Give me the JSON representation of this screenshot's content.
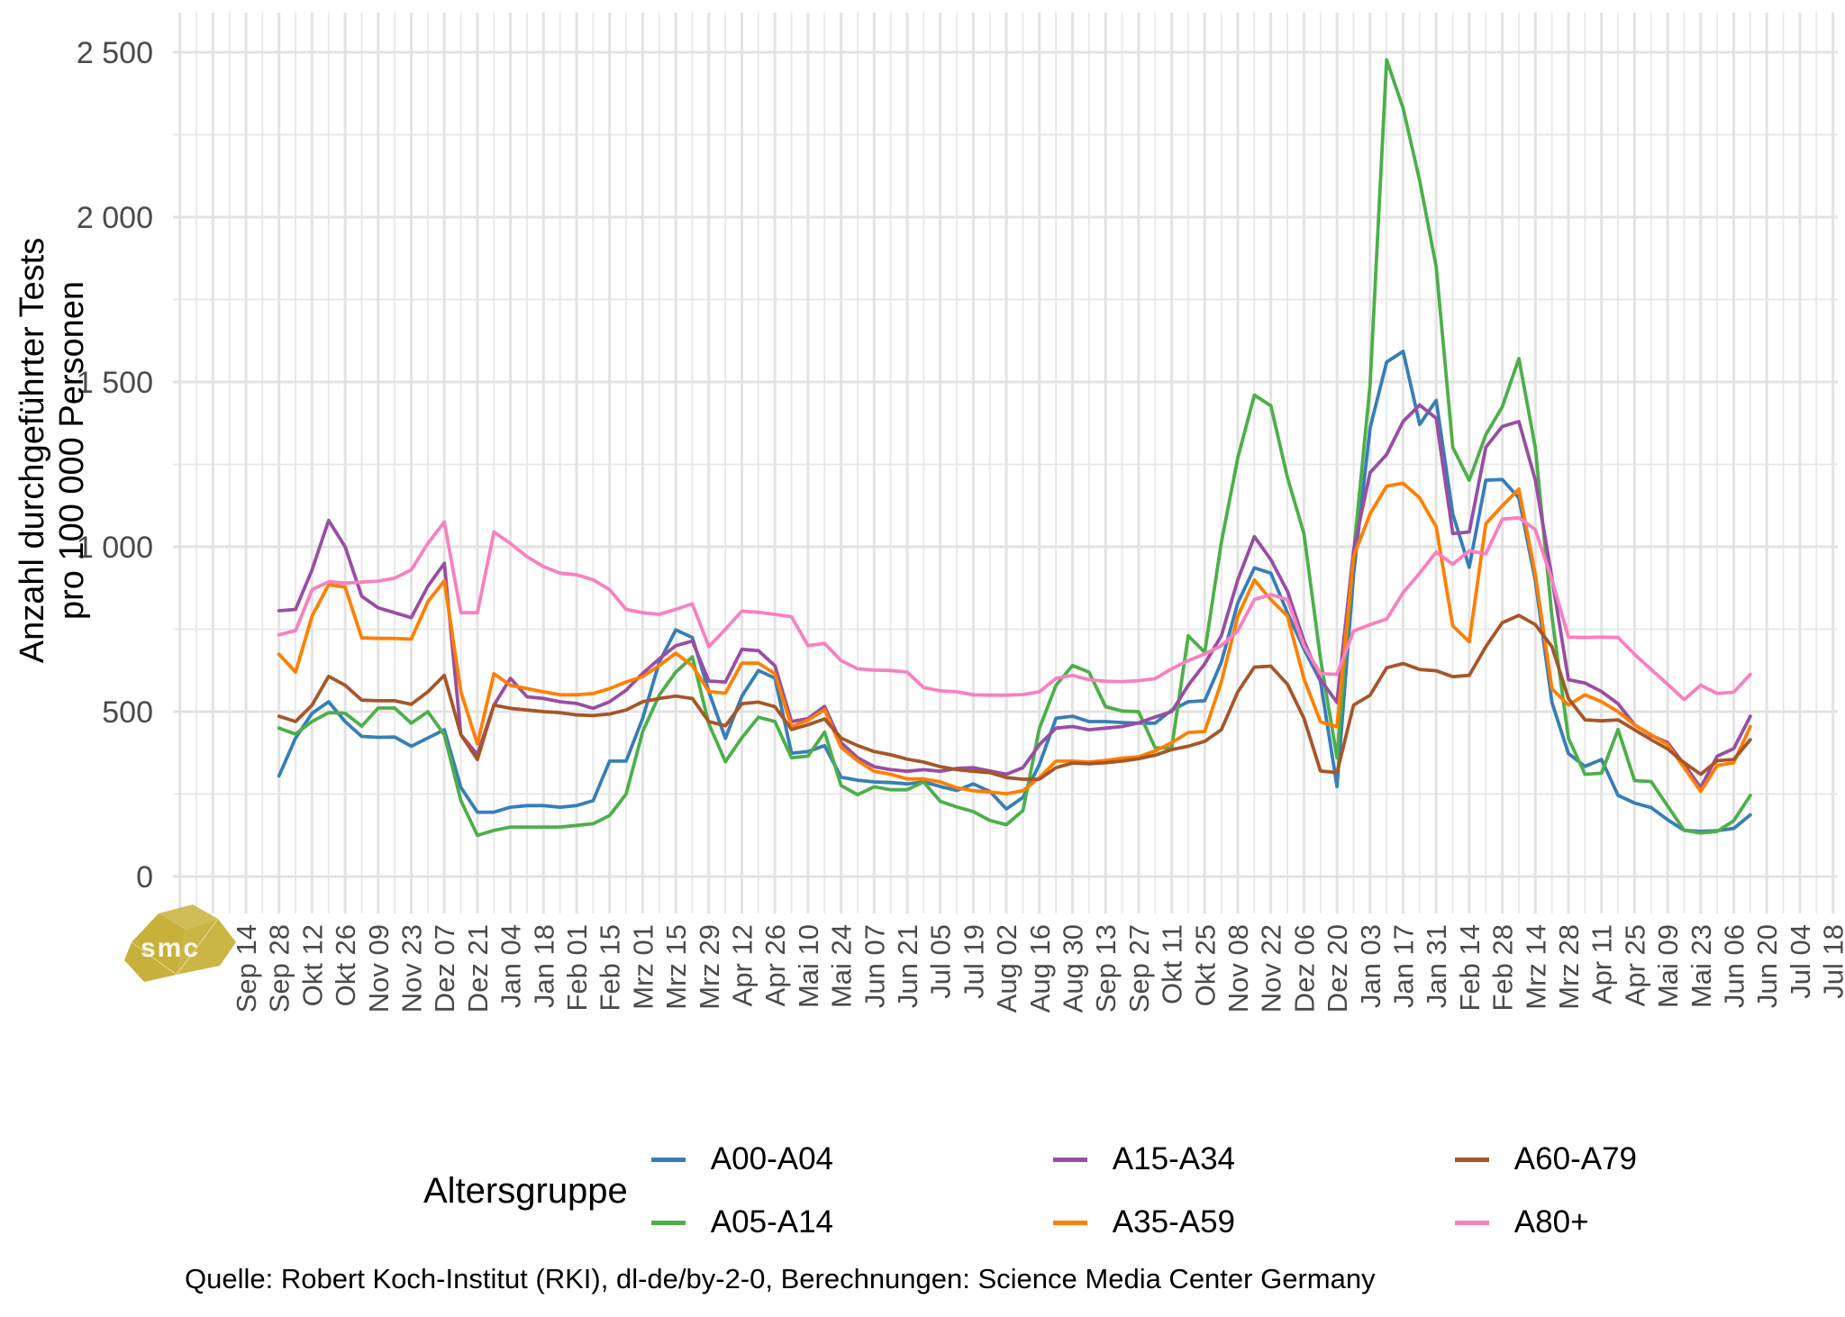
{
  "watermark": {
    "text": "smc",
    "color": "#c8b13b"
  },
  "y_axis": {
    "title_line1": "Anzahl durchgeführter Tests",
    "title_line2": "pro 100 000 Personen",
    "tick_labels": [
      "0",
      "500",
      "1 000",
      "1 500",
      "2 000",
      "2 500"
    ],
    "tick_values": [
      0,
      500,
      1000,
      1500,
      2000,
      2500
    ],
    "minor_values": [
      250,
      750,
      1250,
      1750,
      2250
    ]
  },
  "x_axis": {
    "tick_labels": [
      "Sep 14",
      "Sep 28",
      "Okt 12",
      "Okt 26",
      "Nov 09",
      "Nov 23",
      "Dez 07",
      "Dez 21",
      "Jan 04",
      "Jan 18",
      "Feb 01",
      "Feb 15",
      "Mrz 01",
      "Mrz 15",
      "Mrz 29",
      "Apr 12",
      "Apr 26",
      "Mai 10",
      "Mai 24",
      "Jun 07",
      "Jun 21",
      "Jul 05",
      "Jul 19",
      "Aug 02",
      "Aug 16",
      "Aug 30",
      "Sep 13",
      "Sep 27",
      "Okt 11",
      "Okt 25",
      "Nov 08",
      "Nov 22",
      "Dez 06",
      "Dez 20",
      "Jan 03",
      "Jan 17",
      "Jan 31",
      "Feb 14",
      "Feb 28",
      "Mrz 14",
      "Mrz 28",
      "Apr 11",
      "Apr 25",
      "Mai 09",
      "Mai 23",
      "Jun 06",
      "Jun 20",
      "Jul 04",
      "Jul 18"
    ],
    "ticks_every_weeks": 2
  },
  "legend": {
    "title": "Altersgruppe",
    "items": [
      {
        "label": "A00-A04",
        "color": "#377eb8"
      },
      {
        "label": "A15-A34",
        "color": "#984ea3"
      },
      {
        "label": "A60-A79",
        "color": "#a65628"
      },
      {
        "label": "A05-A14",
        "color": "#4daf4a"
      },
      {
        "label": "A35-A59",
        "color": "#ff7f00"
      },
      {
        "label": "A80+",
        "color": "#f781bf"
      }
    ]
  },
  "source_line": "Quelle: Robert Koch-Institut (RKI), dl-de/by-2-0, Berechnungen: Science Media Center Germany",
  "chart_data": {
    "type": "line",
    "title": "",
    "xlabel": "",
    "ylabel": "Anzahl durchgeführter Tests pro 100 000 Personen",
    "ylim": [
      0,
      2620
    ],
    "grid": true,
    "legend_position": "bottom",
    "x_unit": "weeks since first tick (Sep 14 2020); data points are weekly",
    "first_data_week": 2,
    "series": [
      {
        "name": "A00-A04",
        "color": "#377eb8",
        "values": [
          305,
          420,
          495,
          530,
          470,
          425,
          422,
          423,
          395,
          420,
          445,
          270,
          195,
          195,
          210,
          215,
          215,
          210,
          215,
          230,
          350,
          350,
          480,
          650,
          748,
          725,
          561,
          419,
          547,
          625,
          602,
          374,
          379,
          397,
          301,
          292,
          287,
          285,
          281,
          287,
          273,
          261,
          281,
          258,
          205,
          240,
          340,
          480,
          486,
          470,
          470,
          467,
          465,
          465,
          505,
          530,
          533,
          650,
          830,
          936,
          920,
          800,
          690,
          592,
          273,
          915,
          1360,
          1560,
          1593,
          1371,
          1444,
          1100,
          938,
          1202,
          1204,
          1148,
          897,
          528,
          373,
          334,
          355,
          246,
          223,
          209,
          172,
          140,
          137,
          139,
          146,
          187
        ]
      },
      {
        "name": "A05-A14",
        "color": "#4daf4a",
        "values": [
          450,
          432,
          470,
          497,
          495,
          456,
          511,
          511,
          465,
          500,
          430,
          230,
          125,
          140,
          150,
          150,
          150,
          150,
          155,
          160,
          185,
          250,
          440,
          550,
          620,
          666,
          463,
          348,
          421,
          483,
          470,
          360,
          365,
          438,
          276,
          248,
          272,
          263,
          263,
          287,
          228,
          211,
          197,
          170,
          157,
          200,
          450,
          580,
          640,
          620,
          515,
          502,
          500,
          390,
          390,
          730,
          680,
          1013,
          1270,
          1460,
          1428,
          1210,
          1040,
          660,
          360,
          980,
          1490,
          2477,
          2330,
          2110,
          1850,
          1302,
          1202,
          1340,
          1425,
          1571,
          1300,
          788,
          420,
          310,
          313,
          446,
          291,
          288,
          214,
          140,
          132,
          137,
          169,
          246
        ]
      },
      {
        "name": "A15-A34",
        "color": "#984ea3",
        "values": [
          806,
          810,
          930,
          1080,
          1000,
          850,
          815,
          800,
          785,
          880,
          950,
          430,
          370,
          520,
          601,
          545,
          540,
          530,
          525,
          510,
          530,
          565,
          616,
          660,
          700,
          714,
          593,
          590,
          689,
          685,
          639,
          470,
          479,
          516,
          406,
          360,
          333,
          324,
          319,
          324,
          319,
          328,
          330,
          320,
          310,
          330,
          400,
          450,
          455,
          445,
          450,
          455,
          466,
          484,
          500,
          580,
          645,
          730,
          900,
          1031,
          961,
          865,
          715,
          597,
          528,
          990,
          1225,
          1280,
          1380,
          1430,
          1390,
          1040,
          1045,
          1302,
          1365,
          1380,
          1202,
          906,
          597,
          587,
          561,
          524,
          460,
          428,
          406,
          340,
          270,
          365,
          388,
          486
        ]
      },
      {
        "name": "A35-A59",
        "color": "#ff7f00",
        "values": [
          674,
          620,
          790,
          885,
          878,
          724,
          722,
          722,
          720,
          833,
          897,
          560,
          402,
          615,
          580,
          570,
          560,
          551,
          551,
          555,
          570,
          590,
          606,
          640,
          677,
          640,
          561,
          556,
          647,
          647,
          615,
          455,
          474,
          506,
          392,
          351,
          319,
          310,
          296,
          296,
          287,
          269,
          260,
          256,
          251,
          260,
          300,
          350,
          350,
          347,
          352,
          359,
          363,
          381,
          406,
          437,
          440,
          590,
          790,
          899,
          840,
          790,
          600,
          469,
          455,
          970,
          1100,
          1184,
          1193,
          1148,
          1061,
          760,
          712,
          1070,
          1125,
          1175,
          915,
          569,
          520,
          551,
          530,
          500,
          460,
          430,
          400,
          330,
          258,
          337,
          345,
          455
        ]
      },
      {
        "name": "A60-A79",
        "color": "#a65628",
        "values": [
          486,
          470,
          520,
          607,
          580,
          535,
          533,
          533,
          522,
          560,
          610,
          430,
          355,
          520,
          510,
          505,
          500,
          497,
          490,
          488,
          493,
          505,
          530,
          540,
          547,
          540,
          470,
          457,
          524,
          529,
          515,
          446,
          460,
          478,
          420,
          397,
          379,
          369,
          356,
          347,
          333,
          324,
          319,
          315,
          300,
          295,
          295,
          330,
          344,
          342,
          345,
          350,
          357,
          368,
          385,
          395,
          410,
          445,
          560,
          635,
          638,
          583,
          480,
          320,
          315,
          520,
          550,
          633,
          646,
          628,
          624,
          606,
          610,
          697,
          770,
          792,
          764,
          697,
          540,
          475,
          472,
          475,
          445,
          415,
          387,
          345,
          310,
          351,
          355,
          415
        ]
      },
      {
        "name": "A80+",
        "color": "#f781bf",
        "values": [
          733,
          746,
          870,
          894,
          890,
          893,
          896,
          905,
          930,
          1010,
          1075,
          800,
          800,
          1045,
          1010,
          970,
          940,
          920,
          915,
          900,
          870,
          810,
          800,
          795,
          810,
          827,
          697,
          750,
          805,
          801,
          795,
          788,
          700,
          707,
          655,
          630,
          626,
          625,
          620,
          573,
          563,
          560,
          551,
          550,
          550,
          552,
          560,
          601,
          610,
          597,
          592,
          591,
          594,
          600,
          630,
          655,
          675,
          700,
          745,
          840,
          855,
          840,
          700,
          615,
          613,
          744,
          764,
          781,
          861,
          920,
          984,
          947,
          988,
          979,
          1084,
          1088,
          1052,
          900,
          726,
          725,
          726,
          725,
          674,
          628,
          583,
          537,
          580,
          555,
          559,
          613
        ]
      }
    ]
  }
}
